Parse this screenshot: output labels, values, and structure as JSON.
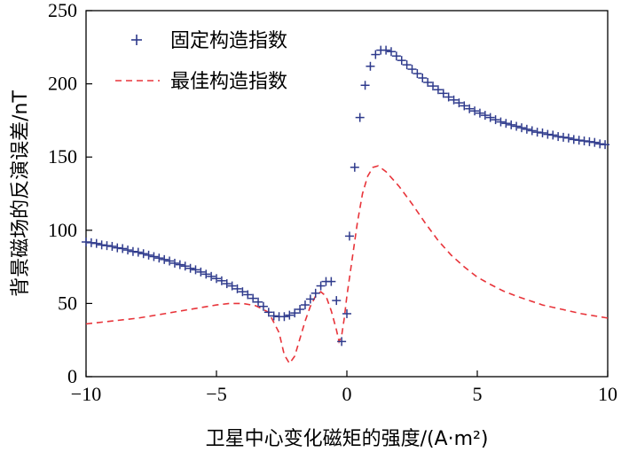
{
  "chart_data": {
    "type": "scatter",
    "title": "",
    "xlabel": "卫星中心变化磁矩的强度/(A·m²)",
    "ylabel": "背景磁场的反演误差/nT",
    "xlim": [
      -10,
      10
    ],
    "ylim": [
      0,
      250
    ],
    "xticks": [
      "−10",
      "−5",
      "0",
      "5",
      "10"
    ],
    "xtick_values": [
      -10,
      -5,
      0,
      5,
      10
    ],
    "yticks": [
      "0",
      "50",
      "100",
      "150",
      "200",
      "250"
    ],
    "ytick_values": [
      0,
      50,
      100,
      150,
      200,
      250
    ],
    "grid": false,
    "legend_position": "top-left",
    "colors": {
      "fixed": "#2e3a8c",
      "best": "#e8343a"
    },
    "series": [
      {
        "name": "固定构造指数",
        "style": "plus-markers",
        "points": [
          [
            -10,
            92
          ],
          [
            -9.8,
            91.5
          ],
          [
            -9.6,
            91
          ],
          [
            -9.4,
            90
          ],
          [
            -9.2,
            89.5
          ],
          [
            -9.0,
            89
          ],
          [
            -8.8,
            88
          ],
          [
            -8.6,
            87.5
          ],
          [
            -8.4,
            86.5
          ],
          [
            -8.2,
            85.5
          ],
          [
            -8.0,
            85
          ],
          [
            -7.8,
            84
          ],
          [
            -7.6,
            83
          ],
          [
            -7.4,
            82
          ],
          [
            -7.2,
            81
          ],
          [
            -7.0,
            80
          ],
          [
            -6.8,
            79
          ],
          [
            -6.6,
            77.5
          ],
          [
            -6.4,
            76.5
          ],
          [
            -6.2,
            75.5
          ],
          [
            -6.0,
            74
          ],
          [
            -5.8,
            73
          ],
          [
            -5.6,
            71.5
          ],
          [
            -5.4,
            70
          ],
          [
            -5.2,
            68.5
          ],
          [
            -5.0,
            67
          ],
          [
            -4.8,
            65.5
          ],
          [
            -4.6,
            63.5
          ],
          [
            -4.4,
            62
          ],
          [
            -4.2,
            60
          ],
          [
            -4.0,
            58
          ],
          [
            -3.8,
            56
          ],
          [
            -3.6,
            53.5
          ],
          [
            -3.4,
            51
          ],
          [
            -3.2,
            48
          ],
          [
            -3.0,
            44
          ],
          [
            -2.8,
            41.5
          ],
          [
            -2.6,
            41
          ],
          [
            -2.4,
            41
          ],
          [
            -2.2,
            42
          ],
          [
            -2.0,
            43.5
          ],
          [
            -1.8,
            46
          ],
          [
            -1.6,
            49
          ],
          [
            -1.4,
            53
          ],
          [
            -1.2,
            57
          ],
          [
            -1.0,
            62
          ],
          [
            -0.8,
            65
          ],
          [
            -0.6,
            65
          ],
          [
            -0.4,
            52
          ],
          [
            -0.2,
            24
          ],
          [
            0.0,
            43
          ],
          [
            0.1,
            96
          ],
          [
            0.3,
            143
          ],
          [
            0.5,
            177
          ],
          [
            0.7,
            199
          ],
          [
            0.9,
            212
          ],
          [
            1.1,
            220
          ],
          [
            1.3,
            223
          ],
          [
            1.5,
            223
          ],
          [
            1.7,
            222
          ],
          [
            1.9,
            219
          ],
          [
            2.1,
            216
          ],
          [
            2.3,
            213
          ],
          [
            2.5,
            210
          ],
          [
            2.7,
            207
          ],
          [
            2.9,
            204
          ],
          [
            3.1,
            201
          ],
          [
            3.3,
            198.5
          ],
          [
            3.5,
            196
          ],
          [
            3.7,
            193.5
          ],
          [
            3.9,
            191
          ],
          [
            4.1,
            189
          ],
          [
            4.3,
            187
          ],
          [
            4.5,
            185
          ],
          [
            4.7,
            183
          ],
          [
            4.9,
            181.5
          ],
          [
            5.1,
            180
          ],
          [
            5.3,
            178.5
          ],
          [
            5.5,
            177
          ],
          [
            5.7,
            175.5
          ],
          [
            5.9,
            174
          ],
          [
            6.1,
            173
          ],
          [
            6.3,
            172
          ],
          [
            6.5,
            171
          ],
          [
            6.7,
            170
          ],
          [
            6.9,
            169
          ],
          [
            7.1,
            168
          ],
          [
            7.3,
            167
          ],
          [
            7.5,
            166.5
          ],
          [
            7.7,
            165.5
          ],
          [
            7.9,
            165
          ],
          [
            8.1,
            164
          ],
          [
            8.3,
            163.5
          ],
          [
            8.5,
            163
          ],
          [
            8.7,
            162
          ],
          [
            8.9,
            161.5
          ],
          [
            9.1,
            161
          ],
          [
            9.3,
            160.5
          ],
          [
            9.5,
            160
          ],
          [
            9.7,
            159
          ],
          [
            9.9,
            158.5
          ]
        ]
      },
      {
        "name": "最佳构造指数",
        "style": "dashed-line",
        "points": [
          [
            -10,
            36
          ],
          [
            -9.0,
            38
          ],
          [
            -8.0,
            40
          ],
          [
            -7.0,
            43
          ],
          [
            -6.0,
            46
          ],
          [
            -5.0,
            49
          ],
          [
            -4.5,
            50
          ],
          [
            -4.0,
            50
          ],
          [
            -3.5,
            48.5
          ],
          [
            -3.0,
            44
          ],
          [
            -2.6,
            30
          ],
          [
            -2.4,
            15
          ],
          [
            -2.2,
            9
          ],
          [
            -2.0,
            14
          ],
          [
            -1.8,
            26
          ],
          [
            -1.6,
            38
          ],
          [
            -1.4,
            48
          ],
          [
            -1.2,
            55
          ],
          [
            -1.0,
            58
          ],
          [
            -0.8,
            55
          ],
          [
            -0.6,
            45
          ],
          [
            -0.4,
            32
          ],
          [
            -0.3,
            24
          ],
          [
            -0.2,
            28
          ],
          [
            -0.1,
            40
          ],
          [
            0.0,
            55
          ],
          [
            0.2,
            80
          ],
          [
            0.4,
            105
          ],
          [
            0.6,
            125
          ],
          [
            0.8,
            137
          ],
          [
            1.0,
            143
          ],
          [
            1.2,
            144
          ],
          [
            1.5,
            140
          ],
          [
            2.0,
            130
          ],
          [
            2.5,
            118
          ],
          [
            3.0,
            105
          ],
          [
            3.5,
            93
          ],
          [
            4.0,
            83
          ],
          [
            4.5,
            75
          ],
          [
            5.0,
            68
          ],
          [
            5.5,
            63
          ],
          [
            6.0,
            58.5
          ],
          [
            6.5,
            55
          ],
          [
            7.0,
            52
          ],
          [
            7.5,
            49
          ],
          [
            8.0,
            47
          ],
          [
            8.5,
            45
          ],
          [
            9.0,
            43
          ],
          [
            9.5,
            41.5
          ],
          [
            10.0,
            40
          ]
        ]
      }
    ]
  }
}
